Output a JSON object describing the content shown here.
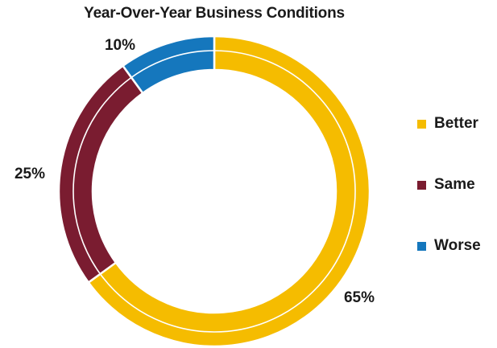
{
  "chart_data": {
    "type": "pie",
    "title": "Year-Over-Year Business Conditions",
    "categories": [
      "Better",
      "Same",
      "Worse"
    ],
    "values": [
      65,
      25,
      10
    ],
    "data_labels": [
      "65%",
      "25%",
      "10%"
    ],
    "colors": [
      "#F5BC00",
      "#7A1C30",
      "#1577BD"
    ],
    "legend_position": "right",
    "donut": true
  }
}
